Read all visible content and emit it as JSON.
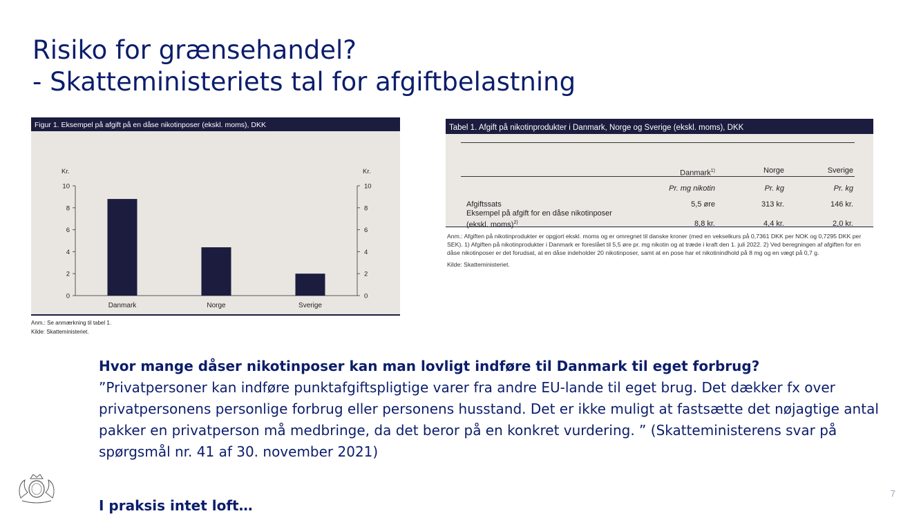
{
  "slide": {
    "title_line1": "Risiko for grænsehandel?",
    "title_line2": "- Skatteministeriets tal for afgiftbelastning",
    "page_number": "7",
    "question": "Hvor mange dåser nikotinposer kan man lovligt indføre til Danmark til eget forbrug?",
    "answer": "”Privatpersoner kan indføre punktafgiftspligtige varer fra andre EU-lande til eget brug. Det dækker fx over privatpersonens personlige forbrug eller personens husstand. Det er ikke muligt at fastsætte det nøjagtige antal pakker en privatperson må medbringe, da det beror på en konkret vurdering. ” (Skatteministerens svar på spørgsmål nr. 41 af 30. november 2021)",
    "conclusion": "I praksis intet loft…",
    "colors": {
      "title": "#0b1d6b",
      "panel_header": "#1c1c3f",
      "bar": "#1c1c3f",
      "panel_bg": "#e9e6e2"
    }
  },
  "chart_data": {
    "type": "bar",
    "title": "Figur 1. Eksempel på afgift på en dåse nikotinposer (ekskl. moms), DKK",
    "categories": [
      "Danmark",
      "Norge",
      "Sverige"
    ],
    "values": [
      8.8,
      4.4,
      2.0
    ],
    "ylabel_left": "Kr.",
    "ylabel_right": "Kr.",
    "ylim": [
      0,
      10
    ],
    "yticks": [
      "0",
      "2",
      "4",
      "6",
      "8",
      "10"
    ],
    "grid": false,
    "note": "Anm.: Se anmærkning til tabel 1.",
    "source": "Kilde: Skatteministeriet."
  },
  "table": {
    "title": "Tabel 1. Afgift på nikotinprodukter i Danmark, Norge og Sverige (ekskl. moms), DKK",
    "columns": [
      "Danmark",
      "Norge",
      "Sverige"
    ],
    "column_superscripts": [
      "1)",
      "",
      ""
    ],
    "units": [
      "Pr. mg nikotin",
      "Pr. kg",
      "Pr. kg"
    ],
    "rows": [
      {
        "label": "Afgiftssats",
        "label2": "",
        "sup": "",
        "values": [
          "5,5 øre",
          "313 kr.",
          "146 kr."
        ]
      },
      {
        "label": "Eksempel på afgift for en dåse nikotinposer",
        "label2": "(ekskl. moms)",
        "sup": "2)",
        "values": [
          "8,8 kr.",
          "4,4 kr.",
          "2,0 kr."
        ]
      }
    ],
    "note": "Anm.: Afgiften på nikotinprodukter er opgjort ekskl. moms og er omregnet til danske kroner (med en vekselkurs på 0,7361 DKK per NOK og 0,7295 DKK per SEK). 1) Afgiften på nikotinprodukter i Danmark er foreslået til 5,5 øre pr. mg nikotin og at træde i kraft den 1. juli 2022. 2) Ved beregningen af afgiften for en dåse nikotinposer er det forudsat, at en dåse indeholder 20 nikotinposer, samt at en pose har et nikotinindhold på 8 mg og en vægt på 0,7 g.",
    "source": "Kilde: Skatteministeriet."
  }
}
